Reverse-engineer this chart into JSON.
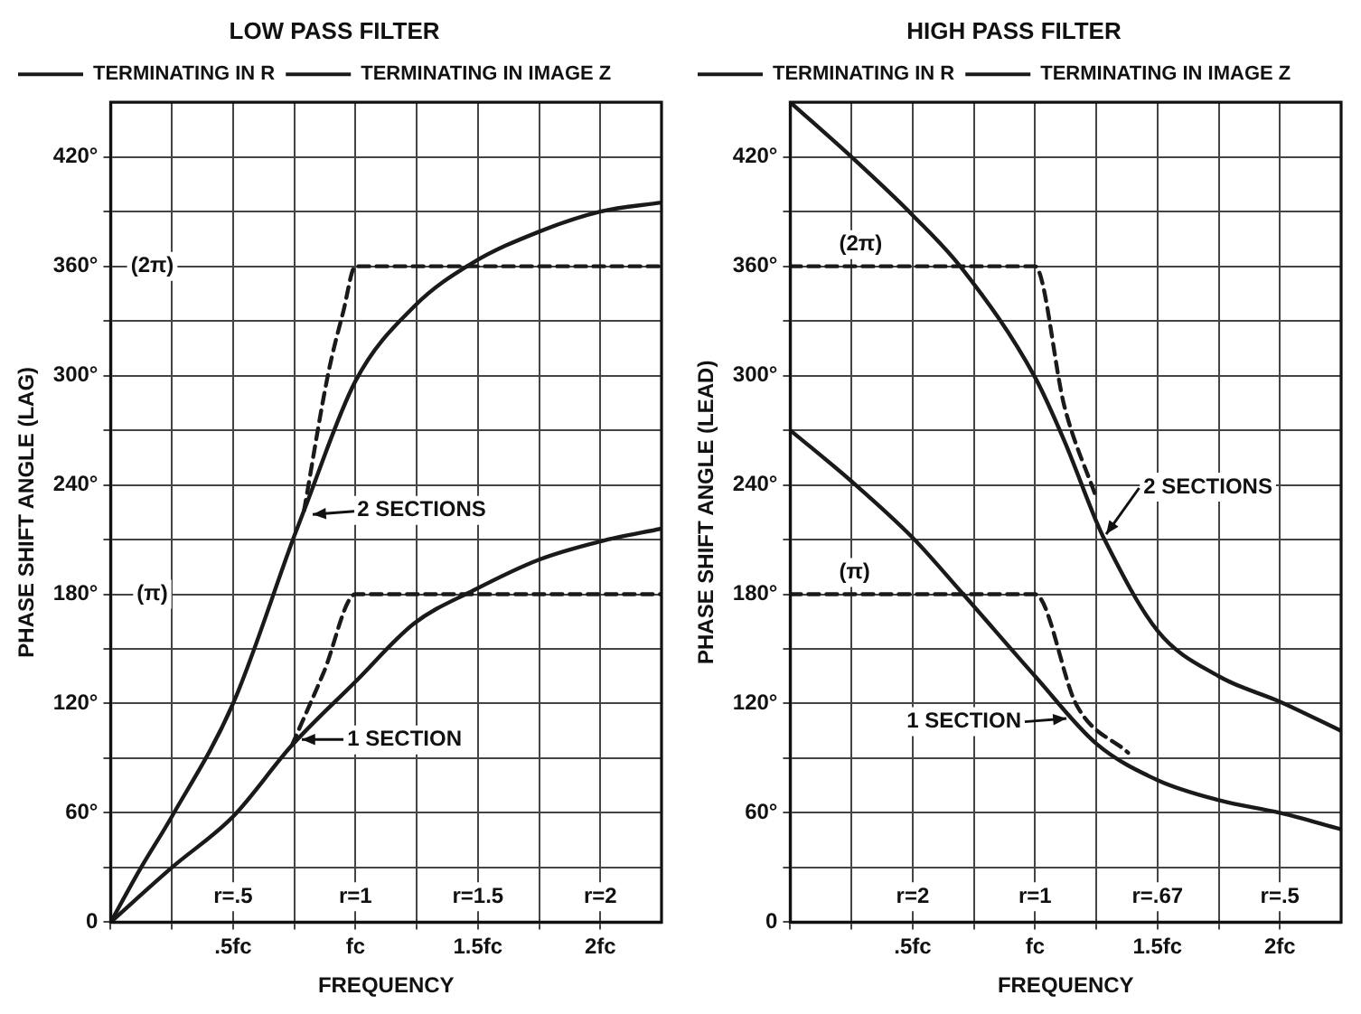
{
  "chart_data": [
    {
      "type": "line",
      "title": "LOW PASS FILTER",
      "xlabel": "FREQUENCY",
      "ylabel": "PHASE SHIFT ANGLE (LAG)",
      "xlim": [
        0,
        2.25
      ],
      "ylim": [
        0,
        450
      ],
      "xticks": [
        {
          "value": 0,
          "label": null
        },
        {
          "value": 0.25,
          "label": null
        },
        {
          "value": 0.5,
          "label": ".5fc"
        },
        {
          "value": 0.75,
          "label": null
        },
        {
          "value": 1,
          "label": "fc"
        },
        {
          "value": 1.25,
          "label": null
        },
        {
          "value": 1.5,
          "label": "1.5fc"
        },
        {
          "value": 1.75,
          "label": null
        },
        {
          "value": 2,
          "label": "2fc"
        }
      ],
      "yticks": [
        {
          "value": 0,
          "label": "0"
        },
        {
          "value": 30,
          "label": null
        },
        {
          "value": 60,
          "label": "60°"
        },
        {
          "value": 90,
          "label": null
        },
        {
          "value": 120,
          "label": "120°"
        },
        {
          "value": 150,
          "label": null
        },
        {
          "value": 180,
          "label": "180°"
        },
        {
          "value": 210,
          "label": null
        },
        {
          "value": 240,
          "label": "240°"
        },
        {
          "value": 270,
          "label": null
        },
        {
          "value": 300,
          "label": "300°"
        },
        {
          "value": 330,
          "label": null
        },
        {
          "value": 360,
          "label": "360°"
        },
        {
          "value": 390,
          "label": null
        },
        {
          "value": 420,
          "label": "420°"
        }
      ],
      "grid": true,
      "legend": "top left",
      "marker": "none",
      "series": [
        {
          "name": "TERMINATING IN R",
          "color": "#1a1a1a",
          "line_style": "solid",
          "x": [
            0,
            0.12,
            0.25,
            0.5,
            0.75,
            0.79,
            1,
            1.24,
            1.48,
            1.75,
            2,
            2.25
          ],
          "values": [
            0,
            29,
            58,
            120,
            212,
            226,
            297,
            338,
            362,
            379,
            390,
            395
          ]
        },
        {
          "name": "TERMINATING IN IMAGE Z",
          "color": "#1a1a1a",
          "line_style": "dashed",
          "x": [
            0.79,
            0.89,
            0.95,
            1,
            2.25
          ],
          "values": [
            226,
            302,
            335,
            360,
            360
          ]
        },
        {
          "color": "#1a1a1a",
          "line_style": "solid",
          "x": [
            0,
            0.25,
            0.5,
            0.74,
            1,
            1.24,
            1.48,
            1.75,
            2,
            2.25
          ],
          "values": [
            0,
            30,
            58,
            97,
            132,
            164,
            182,
            199,
            209,
            216
          ]
        },
        {
          "color": "#1a1a1a",
          "line_style": "dashed",
          "x": [
            0.74,
            0.87,
            1,
            2.25
          ],
          "values": [
            97,
            137,
            180,
            180
          ]
        }
      ],
      "annotations": [
        {
          "text": "(2π)",
          "x": 0.17,
          "y": 360
        },
        {
          "text": "(π)",
          "x": 0.17,
          "y": 180
        },
        {
          "text": "r=.5",
          "x": 0.5,
          "y": 14
        },
        {
          "text": "r=1",
          "x": 1,
          "y": 14
        },
        {
          "text": "r=1.5",
          "x": 1.5,
          "y": 14
        },
        {
          "text": "r=2",
          "x": 2,
          "y": 14
        },
        {
          "text": "2 SECTIONS",
          "x": 0.8,
          "y": 224
        },
        {
          "text": "1 SECTION",
          "x": 0.76,
          "y": 100
        }
      ]
    },
    {
      "type": "line",
      "title": "HIGH PASS FILTER",
      "xlabel": "FREQUENCY",
      "ylabel": "PHASE SHIFT ANGLE (LEAD)",
      "xlim": [
        0,
        2.25
      ],
      "ylim": [
        0,
        450
      ],
      "xticks": [
        {
          "value": 0,
          "label": null
        },
        {
          "value": 0.25,
          "label": null
        },
        {
          "value": 0.5,
          "label": ".5fc"
        },
        {
          "value": 0.75,
          "label": null
        },
        {
          "value": 1,
          "label": "fc"
        },
        {
          "value": 1.25,
          "label": null
        },
        {
          "value": 1.5,
          "label": "1.5fc"
        },
        {
          "value": 1.75,
          "label": null
        },
        {
          "value": 2,
          "label": "2fc"
        }
      ],
      "yticks": [
        {
          "value": 0,
          "label": "0"
        },
        {
          "value": 30,
          "label": null
        },
        {
          "value": 60,
          "label": "60°"
        },
        {
          "value": 90,
          "label": null
        },
        {
          "value": 120,
          "label": "120°"
        },
        {
          "value": 150,
          "label": null
        },
        {
          "value": 180,
          "label": "180°"
        },
        {
          "value": 210,
          "label": null
        },
        {
          "value": 240,
          "label": "240°"
        },
        {
          "value": 270,
          "label": null
        },
        {
          "value": 300,
          "label": "300°"
        },
        {
          "value": 330,
          "label": null
        },
        {
          "value": 360,
          "label": "360°"
        },
        {
          "value": 390,
          "label": null
        },
        {
          "value": 420,
          "label": "420°"
        }
      ],
      "grid": true,
      "legend": "top left",
      "marker": "none",
      "series": [
        {
          "name": "TERMINATING IN R",
          "color": "#1a1a1a",
          "line_style": "solid",
          "x": [
            0,
            0.25,
            0.5,
            0.7,
            1,
            1.12,
            1.25,
            1.28,
            1.5,
            1.75,
            2,
            2.25
          ],
          "values": [
            450,
            420,
            388,
            359,
            299,
            264,
            220,
            211,
            160,
            135,
            121,
            105
          ]
        },
        {
          "name": "TERMINATING IN IMAGE Z",
          "color": "#1a1a1a",
          "line_style": "dashed",
          "x": [
            0,
            1,
            1.12,
            1.25
          ],
          "values": [
            360,
            360,
            283,
            233
          ]
        },
        {
          "color": "#1a1a1a",
          "line_style": "solid",
          "x": [
            0,
            0.25,
            0.5,
            0.7,
            1,
            1.25,
            1.5,
            1.75,
            2,
            2.25
          ],
          "values": [
            270,
            242,
            211,
            181,
            135,
            98,
            78,
            67,
            60,
            51
          ]
        },
        {
          "color": "#1a1a1a",
          "line_style": "dashed",
          "x": [
            0,
            1,
            1.17,
            1.38
          ],
          "values": [
            180,
            180,
            119,
            93
          ]
        }
      ],
      "annotations": [
        {
          "text": "(2π)",
          "x": 0.17,
          "y": 360
        },
        {
          "text": "(π)",
          "x": 0.17,
          "y": 180
        },
        {
          "text": "r=2",
          "x": 0.5,
          "y": 14
        },
        {
          "text": "r=1",
          "x": 1,
          "y": 14
        },
        {
          "text": "r=.67",
          "x": 1.5,
          "y": 14
        },
        {
          "text": "r=.5",
          "x": 2,
          "y": 14
        },
        {
          "text": "2 SECTIONS",
          "x": 1.28,
          "y": 211
        },
        {
          "text": "1 SECTION",
          "x": 1.15,
          "y": 112
        }
      ]
    }
  ]
}
